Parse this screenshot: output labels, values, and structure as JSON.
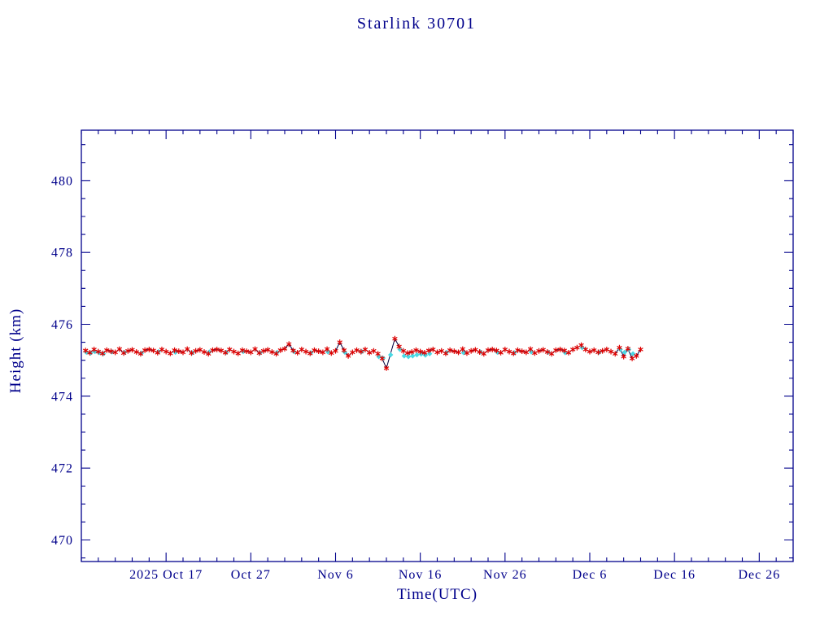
{
  "page": {
    "background_color": "#ffffff"
  },
  "chart_data": {
    "type": "scatter",
    "title": "Starlink 30701",
    "xlabel": "Time(UTC)",
    "ylabel": "Height (km)",
    "axis_color": "#00008b",
    "line_color": "#000040",
    "grid": false,
    "legend": "none",
    "x_axis": {
      "unit": "days since 2025 Oct 7 (UTC)",
      "range": [
        0,
        84
      ],
      "major_ticks": [
        {
          "day": 10,
          "label": "2025 Oct 17"
        },
        {
          "day": 20,
          "label": "Oct 27"
        },
        {
          "day": 30,
          "label": "Nov 6"
        },
        {
          "day": 40,
          "label": "Nov 16"
        },
        {
          "day": 50,
          "label": "Nov 26"
        },
        {
          "day": 60,
          "label": "Dec 6"
        },
        {
          "day": 70,
          "label": "Dec 16"
        },
        {
          "day": 80,
          "label": "Dec 26"
        }
      ],
      "minor_tick_step": 2
    },
    "y_axis": {
      "range": [
        469.4,
        481.4
      ],
      "major_ticks": [
        {
          "value": 470,
          "label": "470"
        },
        {
          "value": 472,
          "label": "472"
        },
        {
          "value": 474,
          "label": "474"
        },
        {
          "value": 476,
          "label": "476"
        },
        {
          "value": 478,
          "label": "478"
        },
        {
          "value": 480,
          "label": "480"
        }
      ],
      "minor_tick_step": 0.5
    },
    "series": [
      {
        "name": "height-cyan-points",
        "type": "scatter",
        "marker": "diamond",
        "color": "#49d9e4",
        "points": [
          [
            0.6,
            475.22
          ],
          [
            1.1,
            475.2
          ],
          [
            1.6,
            475.24
          ],
          [
            2.1,
            475.21
          ],
          [
            2.6,
            475.18
          ],
          [
            3.6,
            475.23
          ],
          [
            5.1,
            475.22
          ],
          [
            7.1,
            475.2
          ],
          [
            9.1,
            475.24
          ],
          [
            11.1,
            475.22
          ],
          [
            13.1,
            475.21
          ],
          [
            15.1,
            475.23
          ],
          [
            17.1,
            475.22
          ],
          [
            19.1,
            475.24
          ],
          [
            21.1,
            475.21
          ],
          [
            23.1,
            475.22
          ],
          [
            25.1,
            475.24
          ],
          [
            27.1,
            475.21
          ],
          [
            29.1,
            475.23
          ],
          [
            31.1,
            475.22
          ],
          [
            33.1,
            475.24
          ],
          [
            35.1,
            475.1
          ],
          [
            35.6,
            475.06
          ],
          [
            36.5,
            475.15
          ],
          [
            37.6,
            475.3
          ],
          [
            38.1,
            475.12
          ],
          [
            38.6,
            475.1
          ],
          [
            39.1,
            475.12
          ],
          [
            39.6,
            475.15
          ],
          [
            40.1,
            475.17
          ],
          [
            40.6,
            475.14
          ],
          [
            41.1,
            475.18
          ],
          [
            43.1,
            475.22
          ],
          [
            45.1,
            475.21
          ],
          [
            47.1,
            475.23
          ],
          [
            49.1,
            475.22
          ],
          [
            51.1,
            475.21
          ],
          [
            53.1,
            475.23
          ],
          [
            55.1,
            475.22
          ],
          [
            57.1,
            475.21
          ],
          [
            59.1,
            475.35
          ],
          [
            61.1,
            475.22
          ],
          [
            63.6,
            475.3
          ],
          [
            64.1,
            475.22
          ],
          [
            64.6,
            475.3
          ],
          [
            65.1,
            475.18
          ]
        ]
      },
      {
        "name": "height-red-asterisks",
        "type": "scatter",
        "marker": "asterisk",
        "color": "#dd0000",
        "connect_line": true,
        "points": [
          [
            0.5,
            475.27
          ],
          [
            1,
            475.21
          ],
          [
            1.5,
            475.3
          ],
          [
            2,
            475.24
          ],
          [
            2.5,
            475.19
          ],
          [
            3,
            475.28
          ],
          [
            3.5,
            475.25
          ],
          [
            4,
            475.22
          ],
          [
            4.5,
            475.31
          ],
          [
            5,
            475.2
          ],
          [
            5.5,
            475.26
          ],
          [
            6,
            475.29
          ],
          [
            6.5,
            475.23
          ],
          [
            7,
            475.18
          ],
          [
            7.5,
            475.28
          ],
          [
            8,
            475.3
          ],
          [
            8.5,
            475.27
          ],
          [
            9,
            475.21
          ],
          [
            9.5,
            475.3
          ],
          [
            10,
            475.24
          ],
          [
            10.5,
            475.19
          ],
          [
            11,
            475.28
          ],
          [
            11.5,
            475.25
          ],
          [
            12,
            475.22
          ],
          [
            12.5,
            475.31
          ],
          [
            13,
            475.2
          ],
          [
            13.5,
            475.26
          ],
          [
            14,
            475.29
          ],
          [
            14.5,
            475.23
          ],
          [
            15,
            475.18
          ],
          [
            15.5,
            475.28
          ],
          [
            16,
            475.3
          ],
          [
            16.5,
            475.27
          ],
          [
            17,
            475.21
          ],
          [
            17.5,
            475.3
          ],
          [
            18,
            475.24
          ],
          [
            18.5,
            475.19
          ],
          [
            19,
            475.28
          ],
          [
            19.5,
            475.25
          ],
          [
            20,
            475.22
          ],
          [
            20.5,
            475.31
          ],
          [
            21,
            475.2
          ],
          [
            21.5,
            475.26
          ],
          [
            22,
            475.29
          ],
          [
            22.5,
            475.23
          ],
          [
            23,
            475.18
          ],
          [
            23.5,
            475.28
          ],
          [
            24,
            475.32
          ],
          [
            24.5,
            475.45
          ],
          [
            25,
            475.27
          ],
          [
            25.5,
            475.21
          ],
          [
            26,
            475.3
          ],
          [
            26.5,
            475.24
          ],
          [
            27,
            475.19
          ],
          [
            27.5,
            475.28
          ],
          [
            28,
            475.25
          ],
          [
            28.5,
            475.22
          ],
          [
            29,
            475.31
          ],
          [
            29.5,
            475.2
          ],
          [
            30,
            475.26
          ],
          [
            30.5,
            475.5
          ],
          [
            31,
            475.28
          ],
          [
            31.5,
            475.12
          ],
          [
            32,
            475.22
          ],
          [
            32.5,
            475.28
          ],
          [
            33,
            475.24
          ],
          [
            33.5,
            475.3
          ],
          [
            34,
            475.21
          ],
          [
            34.5,
            475.26
          ],
          [
            35,
            475.18
          ],
          [
            35.5,
            475.05
          ],
          [
            36,
            474.78
          ],
          [
            37,
            475.6
          ],
          [
            37.5,
            475.38
          ],
          [
            38,
            475.26
          ],
          [
            38.5,
            475.2
          ],
          [
            39,
            475.23
          ],
          [
            39.5,
            475.28
          ],
          [
            40,
            475.24
          ],
          [
            40.5,
            475.21
          ],
          [
            41,
            475.27
          ],
          [
            41.5,
            475.3
          ],
          [
            42,
            475.22
          ],
          [
            42.5,
            475.26
          ],
          [
            43,
            475.19
          ],
          [
            43.5,
            475.28
          ],
          [
            44,
            475.25
          ],
          [
            44.5,
            475.22
          ],
          [
            45,
            475.31
          ],
          [
            45.5,
            475.2
          ],
          [
            46,
            475.26
          ],
          [
            46.5,
            475.29
          ],
          [
            47,
            475.23
          ],
          [
            47.5,
            475.18
          ],
          [
            48,
            475.28
          ],
          [
            48.5,
            475.3
          ],
          [
            49,
            475.27
          ],
          [
            49.5,
            475.21
          ],
          [
            50,
            475.3
          ],
          [
            50.5,
            475.24
          ],
          [
            51,
            475.19
          ],
          [
            51.5,
            475.28
          ],
          [
            52,
            475.25
          ],
          [
            52.5,
            475.22
          ],
          [
            53,
            475.31
          ],
          [
            53.5,
            475.2
          ],
          [
            54,
            475.26
          ],
          [
            54.5,
            475.29
          ],
          [
            55,
            475.23
          ],
          [
            55.5,
            475.18
          ],
          [
            56,
            475.28
          ],
          [
            56.5,
            475.3
          ],
          [
            57,
            475.27
          ],
          [
            57.5,
            475.21
          ],
          [
            58,
            475.3
          ],
          [
            58.5,
            475.35
          ],
          [
            59,
            475.42
          ],
          [
            59.5,
            475.3
          ],
          [
            60,
            475.24
          ],
          [
            60.5,
            475.28
          ],
          [
            61,
            475.22
          ],
          [
            61.5,
            475.26
          ],
          [
            62,
            475.3
          ],
          [
            62.5,
            475.24
          ],
          [
            63,
            475.18
          ],
          [
            63.5,
            475.35
          ],
          [
            64,
            475.1
          ],
          [
            64.5,
            475.32
          ],
          [
            65,
            475.05
          ],
          [
            65.5,
            475.12
          ],
          [
            66,
            475.3
          ]
        ]
      }
    ]
  }
}
